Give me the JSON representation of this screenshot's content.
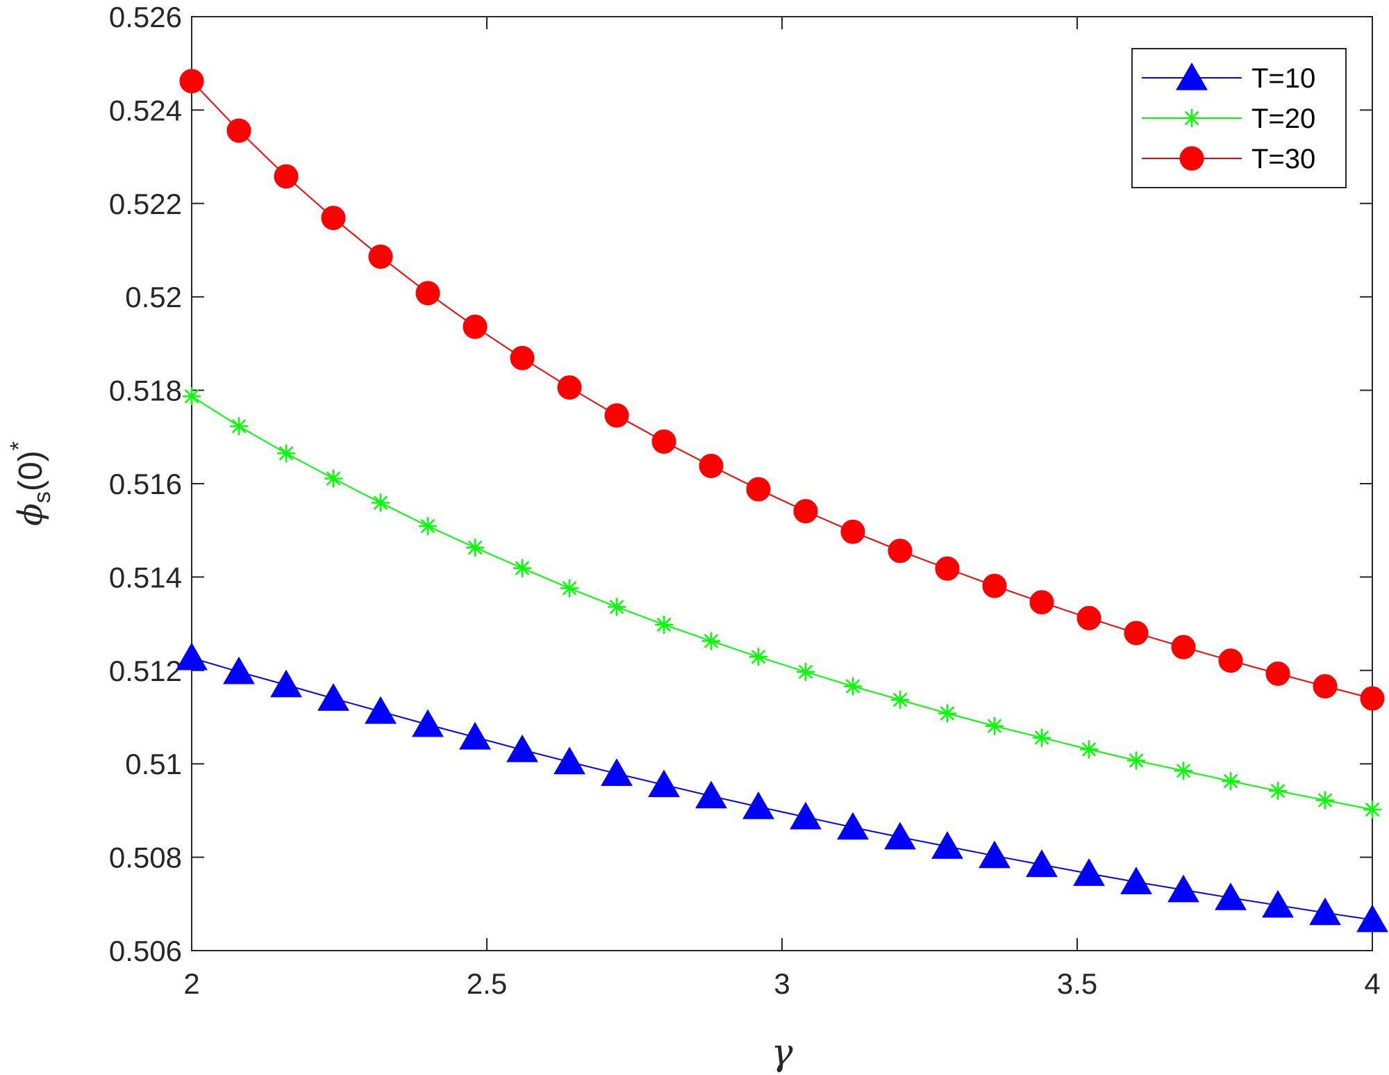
{
  "chart_data": {
    "type": "line",
    "xlabel": "γ",
    "ylabel": {
      "symbol": "ϕ",
      "subscript": "s",
      "argument": "(0)",
      "superscript": "*"
    },
    "xlim": [
      2,
      4
    ],
    "ylim": [
      0.506,
      0.526
    ],
    "xticks": [
      "2",
      "2.5",
      "3",
      "3.5",
      "4"
    ],
    "yticks": [
      "0.506",
      "0.508",
      "0.51",
      "0.512",
      "0.514",
      "0.516",
      "0.518",
      "0.52",
      "0.522",
      "0.524",
      "0.526"
    ],
    "grid": false,
    "box": true,
    "legend_position": "top-right",
    "x": [
      2.0,
      2.08,
      2.16,
      2.24,
      2.32,
      2.4,
      2.48,
      2.56,
      2.64,
      2.72,
      2.8,
      2.88,
      2.96,
      3.04,
      3.12,
      3.2,
      3.28,
      3.36,
      3.44,
      3.52,
      3.6,
      3.68,
      3.76,
      3.84,
      3.92,
      4.0
    ],
    "series": [
      {
        "name": "T=10",
        "color": "#0000ff",
        "marker": "triangle",
        "values": [
          0.51227,
          0.51197,
          0.51169,
          0.5114,
          0.51112,
          0.51084,
          0.51057,
          0.5103,
          0.51004,
          0.50979,
          0.50955,
          0.50931,
          0.50908,
          0.50886,
          0.50864,
          0.50843,
          0.50823,
          0.50803,
          0.50784,
          0.50765,
          0.50747,
          0.5073,
          0.50713,
          0.50697,
          0.50681,
          0.50666
        ]
      },
      {
        "name": "T=20",
        "color": "#00ff00",
        "marker": "asterisk",
        "values": [
          0.51787,
          0.51723,
          0.51665,
          0.51611,
          0.51559,
          0.51509,
          0.51463,
          0.51419,
          0.51376,
          0.51336,
          0.51298,
          0.51263,
          0.51229,
          0.51197,
          0.51166,
          0.51137,
          0.51108,
          0.51081,
          0.51056,
          0.51031,
          0.51007,
          0.50985,
          0.50963,
          0.50942,
          0.50922,
          0.50902
        ]
      },
      {
        "name": "T=30",
        "color": "#ff0000",
        "marker": "circle",
        "values": [
          0.52462,
          0.52356,
          0.52258,
          0.52169,
          0.52086,
          0.52008,
          0.51936,
          0.51869,
          0.51806,
          0.51746,
          0.5169,
          0.51638,
          0.51588,
          0.51541,
          0.51497,
          0.51456,
          0.51418,
          0.51381,
          0.51346,
          0.51312,
          0.5128,
          0.5125,
          0.51221,
          0.51193,
          0.51166,
          0.5114
        ]
      }
    ]
  }
}
